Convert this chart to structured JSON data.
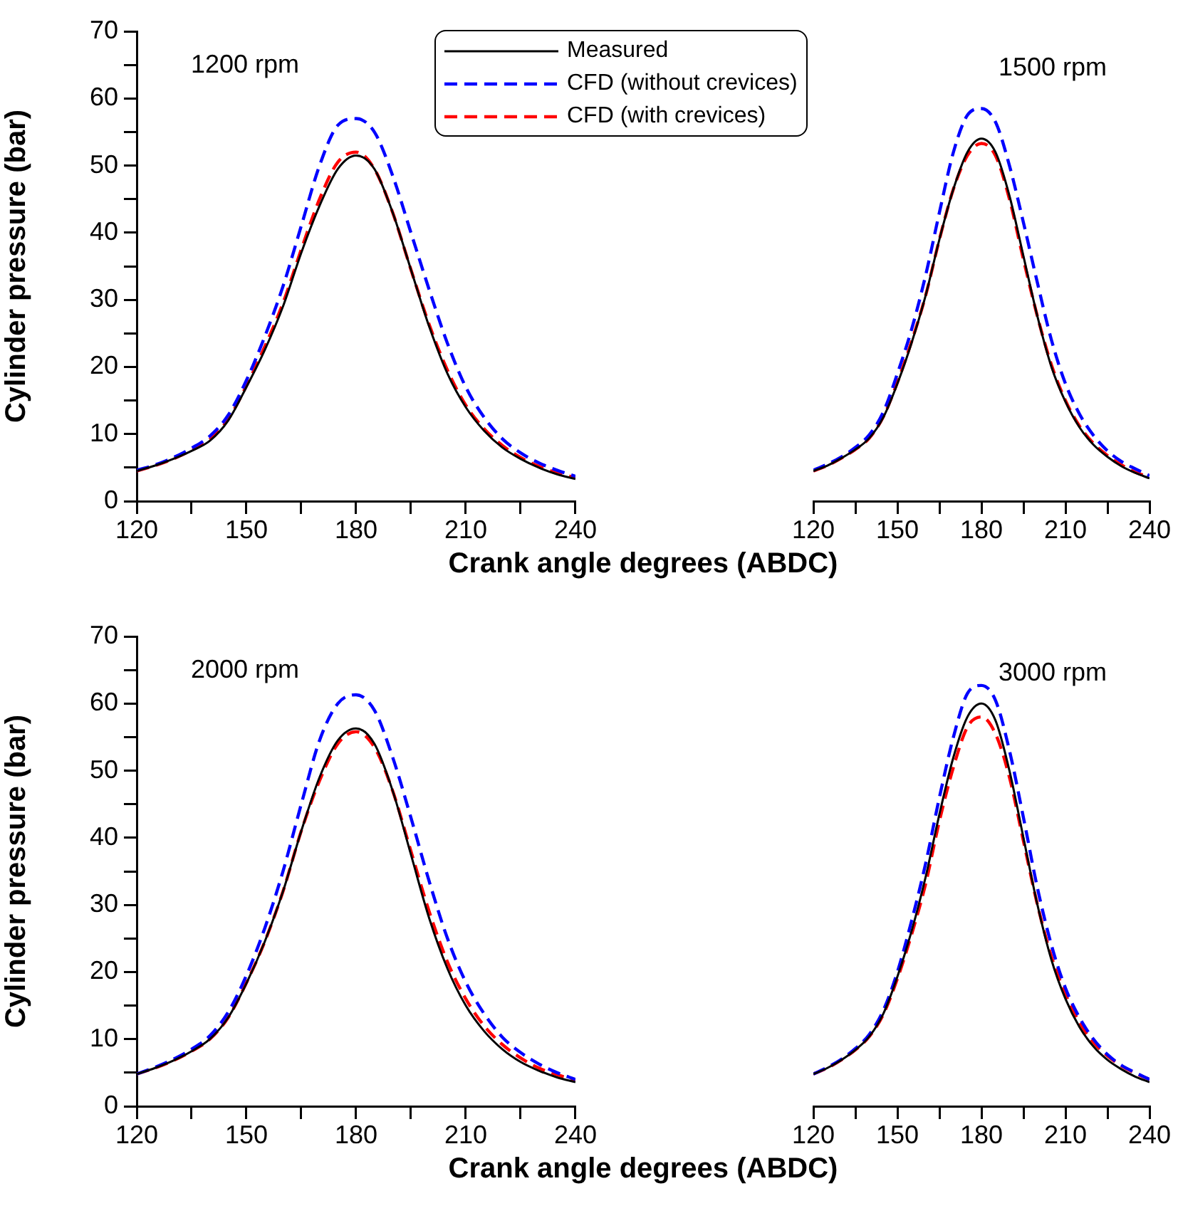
{
  "chart_data": [
    {
      "type": "line",
      "title": "1200 rpm",
      "xlabel": "Crank angle degrees (ABDC)",
      "ylabel": "Cylinder pressure (bar)",
      "legend": "top",
      "marker": "none",
      "grid": false,
      "x": [
        120,
        125,
        130,
        135,
        140,
        145,
        150,
        155,
        160,
        165,
        170,
        175,
        180,
        185,
        190,
        195,
        200,
        205,
        210,
        215,
        220,
        225,
        230,
        235,
        240
      ],
      "xlim": [
        120,
        240
      ],
      "xticks": [
        120,
        {
          "value": 135,
          "label": null
        },
        150,
        {
          "value": 165,
          "label": null
        },
        180,
        {
          "value": 195,
          "label": null
        },
        210,
        {
          "value": 225,
          "label": null
        },
        240
      ],
      "ylim": [
        0,
        70
      ],
      "yticks": [
        0,
        {
          "value": 5,
          "label": null
        },
        10,
        {
          "value": 15,
          "label": null
        },
        20,
        {
          "value": 25,
          "label": null
        },
        30,
        {
          "value": 35,
          "label": null
        },
        40,
        {
          "value": 45,
          "label": null
        },
        50,
        {
          "value": 55,
          "label": null
        },
        60,
        {
          "value": 65,
          "label": null
        },
        70
      ],
      "series": [
        {
          "name": "Measured",
          "color": "#000000",
          "line_style": "solid",
          "values": [
            4.5,
            5.3,
            6.3,
            7.5,
            9,
            12,
            17,
            22.5,
            29,
            37,
            44,
            49.5,
            51.5,
            49.5,
            43,
            34.5,
            26,
            19,
            14,
            10.5,
            8,
            6.3,
            5,
            4,
            3.3
          ]
        },
        {
          "name": "CFD (without crevices)",
          "color": "#0000ff",
          "line_style": "dashed",
          "values": [
            4.6,
            5.4,
            6.5,
            7.9,
            9.7,
            12.8,
            18,
            24.5,
            32,
            41,
            50,
            56,
            57,
            55,
            48.5,
            40,
            31.5,
            23.5,
            17,
            12.5,
            9.3,
            7.2,
            5.7,
            4.6,
            3.7
          ]
        },
        {
          "name": "CFD (with crevices)",
          "color": "#ff0000",
          "line_style": "dashed",
          "values": [
            4.5,
            5.3,
            6.3,
            7.6,
            9.2,
            12.2,
            17.2,
            23,
            29.5,
            37.5,
            45,
            50.5,
            52,
            49.5,
            43,
            34.5,
            26.3,
            19.5,
            14.3,
            10.8,
            8.3,
            6.5,
            5.2,
            4.2,
            3.5
          ]
        }
      ]
    },
    {
      "type": "line",
      "title": "1500 rpm",
      "tick_labels": "x",
      "marker": "none",
      "grid": false,
      "x": [
        120,
        125,
        130,
        135,
        140,
        145,
        150,
        155,
        160,
        165,
        170,
        175,
        180,
        185,
        190,
        195,
        200,
        205,
        210,
        215,
        220,
        225,
        230,
        235,
        240
      ],
      "xlim": [
        120,
        240
      ],
      "xticks": [
        120,
        {
          "value": 135,
          "label": null
        },
        150,
        {
          "value": 165,
          "label": null
        },
        180,
        {
          "value": 195,
          "label": null
        },
        210,
        {
          "value": 225,
          "label": null
        },
        240
      ],
      "ylim": [
        0,
        70
      ],
      "series": [
        {
          "color": "#000000",
          "line_style": "solid",
          "values": [
            4.5,
            5.3,
            6.4,
            7.7,
            9.4,
            12.5,
            17.5,
            23.5,
            30.5,
            39,
            46.5,
            52,
            54,
            52,
            45.5,
            36.5,
            27.5,
            20,
            14.8,
            11,
            8.4,
            6.6,
            5.2,
            4.2,
            3.4
          ]
        },
        {
          "color": "#0000ff",
          "line_style": "dashed",
          "values": [
            4.6,
            5.5,
            6.6,
            8,
            9.9,
            13.3,
            19,
            25.5,
            33.5,
            43,
            52,
            57.5,
            58.5,
            56.5,
            50,
            41.5,
            32.5,
            24,
            17.5,
            13,
            9.8,
            7.5,
            5.9,
            4.8,
            3.8
          ]
        },
        {
          "color": "#ff0000",
          "line_style": "dashed",
          "values": [
            4.5,
            5.3,
            6.4,
            7.7,
            9.4,
            12.6,
            17.7,
            23.7,
            30.5,
            39,
            46.5,
            51.5,
            53.3,
            51.5,
            45,
            36,
            27.5,
            20.3,
            15,
            11.2,
            8.6,
            6.8,
            5.4,
            4.3,
            3.6
          ]
        }
      ]
    },
    {
      "type": "line",
      "title": "2000 rpm",
      "xlabel": "Crank angle degrees (ABDC)",
      "ylabel": "Cylinder pressure (bar)",
      "marker": "none",
      "grid": false,
      "x": [
        120,
        125,
        130,
        135,
        140,
        145,
        150,
        155,
        160,
        165,
        170,
        175,
        180,
        185,
        190,
        195,
        200,
        205,
        210,
        215,
        220,
        225,
        230,
        235,
        240
      ],
      "xlim": [
        120,
        240
      ],
      "xticks": [
        120,
        {
          "value": 135,
          "label": null
        },
        150,
        {
          "value": 165,
          "label": null
        },
        180,
        {
          "value": 195,
          "label": null
        },
        210,
        {
          "value": 225,
          "label": null
        },
        240
      ],
      "ylim": [
        0,
        70
      ],
      "yticks": [
        0,
        {
          "value": 5,
          "label": null
        },
        10,
        {
          "value": 15,
          "label": null
        },
        20,
        {
          "value": 25,
          "label": null
        },
        30,
        {
          "value": 35,
          "label": null
        },
        40,
        {
          "value": 45,
          "label": null
        },
        50,
        {
          "value": 55,
          "label": null
        },
        60,
        {
          "value": 65,
          "label": null
        },
        70
      ],
      "series": [
        {
          "color": "#000000",
          "line_style": "solid",
          "values": [
            4.8,
            5.7,
            6.8,
            8.2,
            10,
            13.2,
            18.3,
            24.5,
            32,
            41,
            49,
            54.5,
            56.3,
            54,
            47,
            37.5,
            28,
            20.5,
            15,
            11.2,
            8.5,
            6.6,
            5.3,
            4.3,
            3.6
          ]
        },
        {
          "color": "#0000ff",
          "line_style": "dashed",
          "values": [
            4.8,
            5.8,
            7,
            8.5,
            10.5,
            14,
            19.5,
            26.5,
            35,
            45,
            54.5,
            60,
            61.3,
            59,
            52,
            43,
            33.5,
            25,
            18.5,
            13.8,
            10.3,
            8,
            6.3,
            5,
            4
          ]
        },
        {
          "color": "#ff0000",
          "line_style": "dashed",
          "values": [
            4.8,
            5.7,
            6.8,
            8.2,
            10,
            13.2,
            18.4,
            24.5,
            32,
            41,
            48.5,
            54,
            55.8,
            53.5,
            47,
            38,
            29,
            21.5,
            16,
            12,
            9.2,
            7.2,
            5.7,
            4.7,
            3.9
          ]
        }
      ]
    },
    {
      "type": "line",
      "title": "3000 rpm",
      "tick_labels": "x",
      "marker": "none",
      "grid": false,
      "x": [
        120,
        125,
        130,
        135,
        140,
        145,
        150,
        155,
        160,
        165,
        170,
        175,
        180,
        185,
        190,
        195,
        200,
        205,
        210,
        215,
        220,
        225,
        230,
        235,
        240
      ],
      "xlim": [
        120,
        240
      ],
      "xticks": [
        120,
        {
          "value": 135,
          "label": null
        },
        150,
        {
          "value": 165,
          "label": null
        },
        180,
        {
          "value": 195,
          "label": null
        },
        210,
        {
          "value": 225,
          "label": null
        },
        240
      ],
      "ylim": [
        0,
        70
      ],
      "series": [
        {
          "color": "#000000",
          "line_style": "solid",
          "values": [
            4.8,
            5.7,
            6.9,
            8.4,
            10.4,
            13.8,
            19.3,
            26,
            34,
            43.5,
            52,
            58,
            60,
            57.5,
            50,
            40,
            30,
            21.8,
            16,
            11.8,
            8.9,
            6.9,
            5.5,
            4.4,
            3.6
          ]
        },
        {
          "color": "#0000ff",
          "line_style": "dashed",
          "values": [
            4.8,
            5.8,
            7,
            8.6,
            10.7,
            14.3,
            20,
            27.5,
            36,
            46,
            55,
            61.5,
            62.7,
            60.5,
            53,
            43,
            32.5,
            24,
            17.6,
            13.2,
            10,
            7.7,
            6.1,
            5,
            4
          ]
        },
        {
          "color": "#ff0000",
          "line_style": "dashed",
          "values": [
            4.8,
            5.7,
            6.9,
            8.4,
            10.4,
            13.7,
            19,
            25.5,
            33,
            42.5,
            50.5,
            56.5,
            58,
            55.5,
            49,
            39.5,
            30,
            22.3,
            16.7,
            12.5,
            9.5,
            7.5,
            6,
            4.9,
            4
          ]
        }
      ]
    }
  ]
}
